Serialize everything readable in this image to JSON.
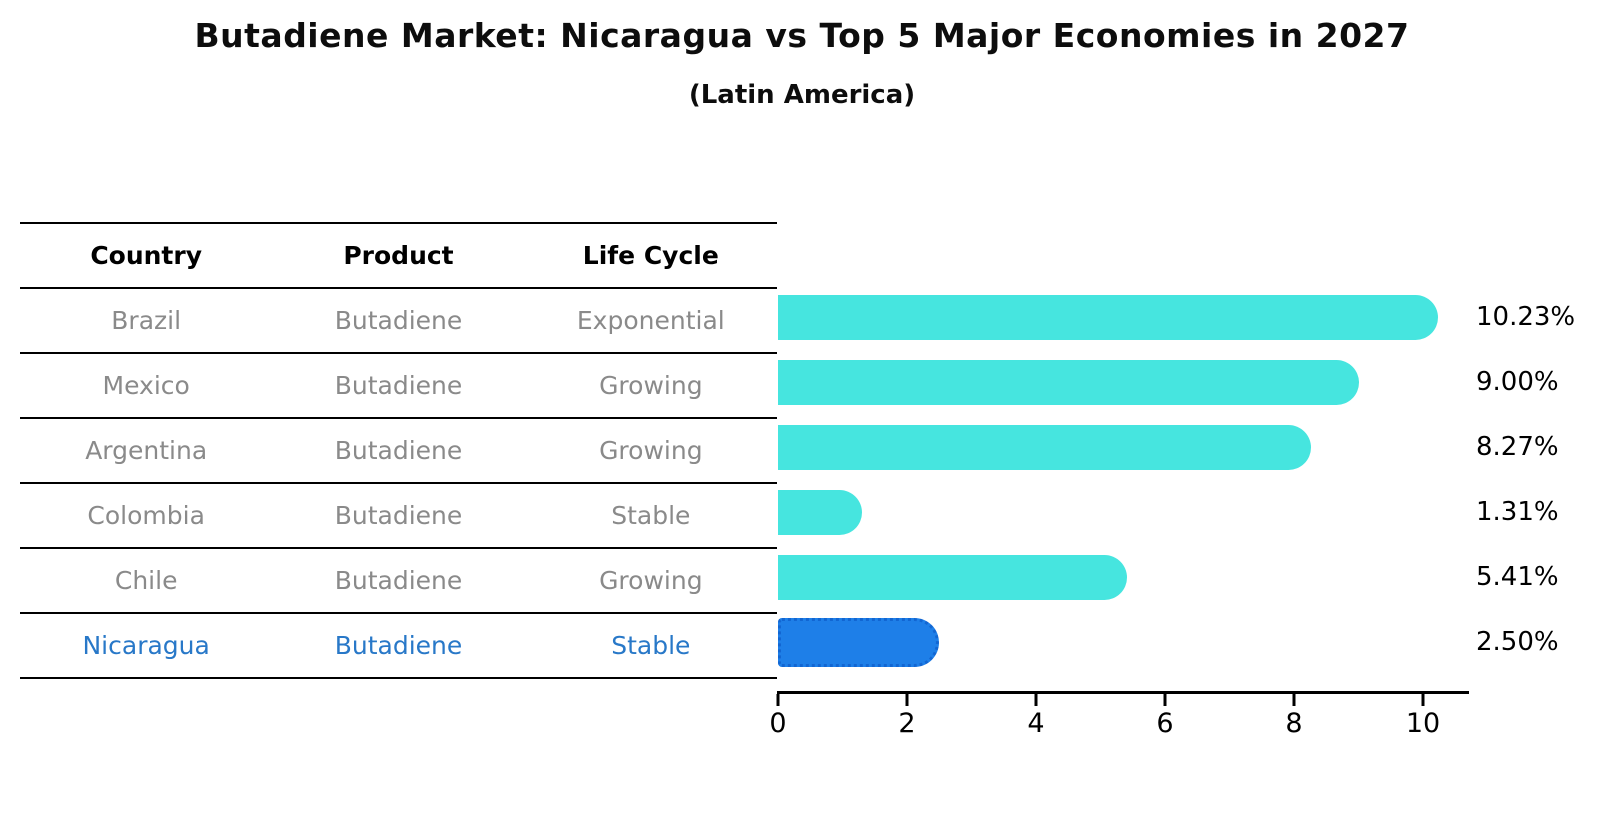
{
  "title": "Butadiene Market: Nicaragua vs Top 5 Major Economies in 2027",
  "subtitle": "(Latin America)",
  "table": {
    "headers": [
      "Country",
      "Product",
      "Life Cycle"
    ],
    "rows": [
      {
        "country": "Brazil",
        "product": "Butadiene",
        "life_cycle": "Exponential",
        "highlight": false
      },
      {
        "country": "Mexico",
        "product": "Butadiene",
        "life_cycle": "Growing",
        "highlight": false
      },
      {
        "country": "Argentina",
        "product": "Butadiene",
        "life_cycle": "Growing",
        "highlight": false
      },
      {
        "country": "Colombia",
        "product": "Butadiene",
        "life_cycle": "Stable",
        "highlight": false
      },
      {
        "country": "Chile",
        "product": "Butadiene",
        "life_cycle": "Growing",
        "highlight": false
      },
      {
        "country": "Nicaragua",
        "product": "Butadiene",
        "life_cycle": "Stable",
        "highlight": true
      }
    ]
  },
  "chart_data": {
    "type": "bar",
    "orientation": "horizontal",
    "title": "Butadiene Market: Nicaragua vs Top 5 Major Economies in 2027 (Latin America)",
    "categories": [
      "Brazil",
      "Mexico",
      "Argentina",
      "Colombia",
      "Chile",
      "Nicaragua"
    ],
    "values": [
      10.23,
      9.0,
      8.27,
      1.31,
      5.41,
      2.5
    ],
    "value_labels": [
      "10.23%",
      "9.00%",
      "8.27%",
      "1.31%",
      "5.41%",
      "2.50%"
    ],
    "x_ticks": [
      0,
      2,
      4,
      6,
      8,
      10
    ],
    "xlim": [
      0,
      10.7
    ],
    "grid": false,
    "legend": false,
    "highlight_index": 5
  },
  "colors": {
    "bar": "#46E5DF",
    "highlight_bar": "#1E7FE8",
    "highlight_border": "#1266D2",
    "highlight_text": "#2878C8",
    "row_text": "#8a8a8a",
    "axis": "#000000"
  }
}
